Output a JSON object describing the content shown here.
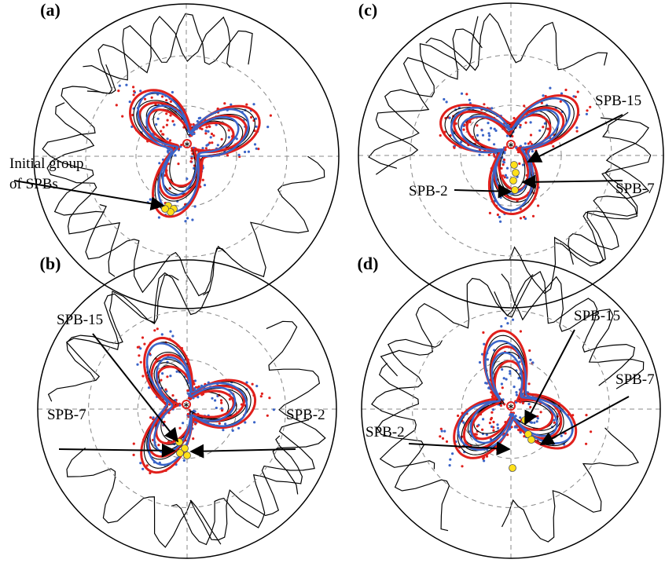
{
  "panels": [
    {
      "label": "(a)",
      "annotations": [
        "Initial group",
        "of SPBs"
      ]
    },
    {
      "label": "(b)",
      "annotations": [
        "SPB-15",
        "SPB-7",
        "SPB-2"
      ]
    },
    {
      "label": "(c)",
      "annotations": [
        "SPB-15",
        "SPB-7",
        "SPB-2"
      ]
    },
    {
      "label": "(d)",
      "annotations": [
        "SPB-15",
        "SPB-7",
        "SPB-2"
      ]
    }
  ]
}
